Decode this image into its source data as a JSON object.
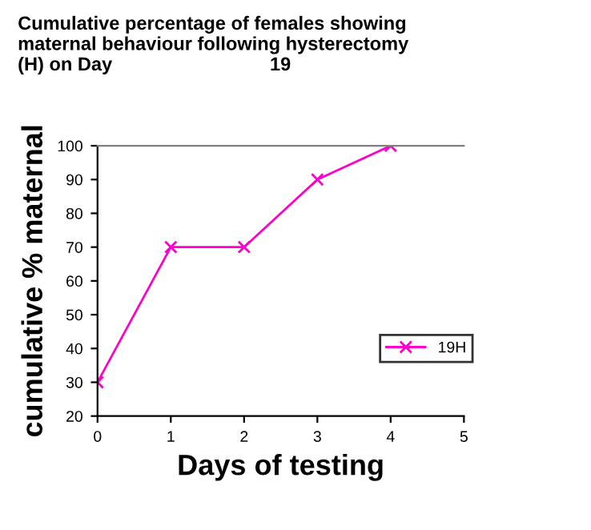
{
  "chart_data": {
    "type": "line",
    "title": "Cumulative percentage of females showing\nmaternal behaviour following hysterectomy\n(H) on Day                              19",
    "xlabel": "Days of testing",
    "ylabel": "cumulative % maternal",
    "x": [
      0,
      1,
      2,
      3,
      4
    ],
    "series": [
      {
        "name": "19H",
        "color": "#ff00cc",
        "values": [
          30,
          70,
          70,
          90,
          100
        ]
      }
    ],
    "xlim": [
      0,
      5
    ],
    "xticks": [
      0,
      1,
      2,
      3,
      4,
      5
    ],
    "ylim": [
      20,
      100
    ],
    "yticks": [
      20,
      30,
      40,
      50,
      60,
      70,
      80,
      90,
      100
    ],
    "marker": "cross",
    "line_style": "solid",
    "legend": "right",
    "grid": false
  }
}
